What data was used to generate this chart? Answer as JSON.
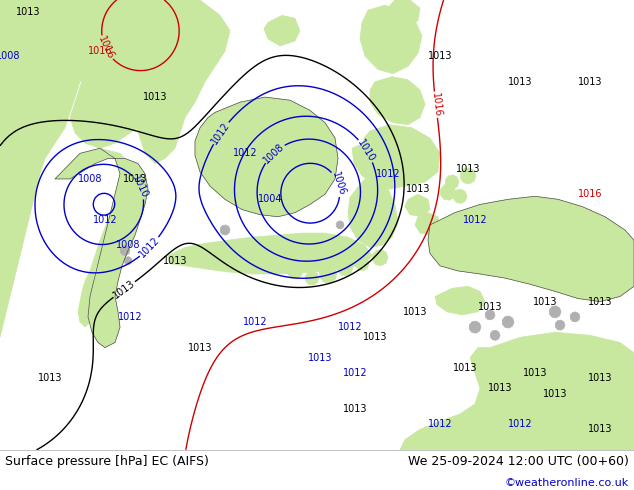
{
  "title_left": "Surface pressure [hPa] EC (AIFS)",
  "title_right": "We 25-09-2024 12:00 UTC (00+60)",
  "copyright": "©weatheronline.co.uk",
  "fig_width": 6.34,
  "fig_height": 4.9,
  "dpi": 100,
  "land_color": "#c8e8a0",
  "sea_color": "#f0f0f0",
  "gray_land_color": "#b0b0b0",
  "contour_blue": "#0000cc",
  "contour_black": "#000000",
  "contour_red": "#cc0000",
  "footer_bg": "#e8e8e8",
  "copyright_color": "#0000cc",
  "font_size_footer": 9,
  "font_size_label": 7
}
